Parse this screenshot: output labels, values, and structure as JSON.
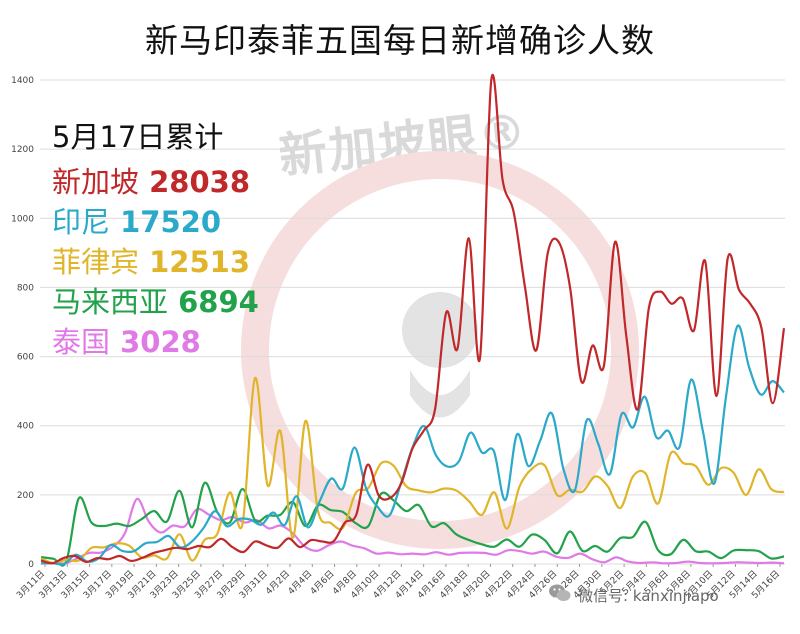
{
  "title": "新马印泰菲五国每日新增确诊人数",
  "watermark": "新加坡眼®",
  "legend_heading": "5月17日累计",
  "footer_text": "微信号: kanxinjiapo",
  "chart_data": {
    "type": "line",
    "title": "新马印泰菲五国每日新增确诊人数",
    "xlabel": "",
    "ylabel": "",
    "ylim": [
      0,
      1400
    ],
    "yticks": [
      0,
      200,
      400,
      600,
      800,
      1000,
      1200,
      1400
    ],
    "grid": true,
    "legend_placement": "top-left",
    "x_tick_labels": [
      "3月11日",
      "3月13日",
      "3月15日",
      "3月17日",
      "3月19日",
      "3月21日",
      "3月23日",
      "3月25日",
      "3月27日",
      "3月29日",
      "3月31日",
      "4月2日",
      "4月4日",
      "4月6日",
      "4月8日",
      "4月10日",
      "4月12日",
      "4月14日",
      "4月16日",
      "4月18日",
      "4月20日",
      "4月22日",
      "4月24日",
      "4月26日",
      "4月28日",
      "4月30日",
      "5月2日",
      "5月4日",
      "5月6日",
      "5月8日",
      "5月10日",
      "5月12日",
      "5月14日",
      "5月16日"
    ],
    "x_start_date": "3月11日",
    "series": [
      {
        "name": "新加坡",
        "total": "28038",
        "color": "#c0282a",
        "values": [
          10,
          2,
          17,
          23,
          6,
          17,
          14,
          23,
          9,
          18,
          32,
          40,
          47,
          43,
          52,
          49,
          73,
          49,
          35,
          65,
          54,
          47,
          74,
          49,
          69,
          65,
          66,
          120,
          142,
          287,
          198,
          191,
          233,
          334,
          386,
          447,
          728,
          623,
          942,
          596,
          1426,
          1111,
          1016,
          799,
          618,
          897,
          931,
          799,
          528,
          632,
          573,
          932,
          657,
          447,
          741,
          788,
          753,
          768,
          675,
          876,
          486,
          884,
          793,
          753,
          682,
          465,
          682
        ]
      },
      {
        "name": "印尼",
        "total": "17520",
        "color": "#2aa9c9",
        "values": [
          2,
          2,
          0,
          27,
          7,
          17,
          55,
          38,
          37,
          60,
          64,
          81,
          48,
          65,
          104,
          153,
          109,
          130,
          129,
          114,
          149,
          113,
          196,
          106,
          181,
          247,
          218,
          337,
          219,
          165,
          140,
          233,
          337,
          399,
          316,
          282,
          297,
          380,
          322,
          327,
          185,
          375,
          283,
          357,
          436,
          275,
          214,
          415,
          347,
          260,
          433,
          395,
          484,
          367,
          386,
          338,
          533,
          387,
          233,
          484,
          689,
          568,
          490,
          529,
          496
        ]
      },
      {
        "name": "菲律宾",
        "total": "12513",
        "color": "#e0b52a",
        "values": [
          16,
          3,
          12,
          10,
          47,
          48,
          60,
          53,
          19,
          25,
          16,
          86,
          10,
          70,
          87,
          207,
          115,
          538,
          227,
          385,
          76,
          414,
          152,
          119,
          106,
          206,
          220,
          291,
          284,
          225,
          213,
          207,
          218,
          212,
          181,
          142,
          207,
          102,
          224,
          276,
          285,
          199,
          215,
          209,
          253,
          225,
          162,
          253,
          262,
          175,
          320,
          292,
          283,
          229,
          277,
          264,
          200,
          274,
          216,
          208
        ]
      },
      {
        "name": "马来西亚",
        "total": "6894",
        "color": "#22a24a",
        "values": [
          20,
          15,
          7,
          190,
          120,
          110,
          117,
          110,
          130,
          153,
          123,
          212,
          106,
          235,
          150,
          120,
          217,
          126,
          140,
          142,
          179,
          110,
          170,
          156,
          150,
          118,
          110,
          203,
          184,
          153,
          170,
          109,
          118,
          85,
          69,
          57,
          50,
          71,
          50,
          85,
          69,
          31,
          94,
          38,
          52,
          36,
          75,
          78,
          122,
          40,
          28,
          70,
          37,
          36,
          17,
          39,
          40,
          37,
          16,
          22
        ]
      },
      {
        "name": "泰国",
        "total": "3028",
        "color": "#e07ae6",
        "values": [
          1,
          3,
          2,
          16,
          32,
          33,
          50,
          89,
          188,
          122,
          91,
          111,
          109,
          158,
          143,
          127,
          136,
          120,
          127,
          103,
          111,
          89,
          51,
          38,
          54,
          65,
          53,
          45,
          30,
          33,
          28,
          30,
          28,
          34,
          27,
          32,
          33,
          32,
          27,
          40,
          37,
          30,
          36,
          21,
          18,
          30,
          14,
          5,
          19,
          7,
          3,
          5,
          2,
          3,
          7,
          3,
          2,
          3,
          5,
          4,
          3,
          4,
          2
        ]
      }
    ]
  }
}
